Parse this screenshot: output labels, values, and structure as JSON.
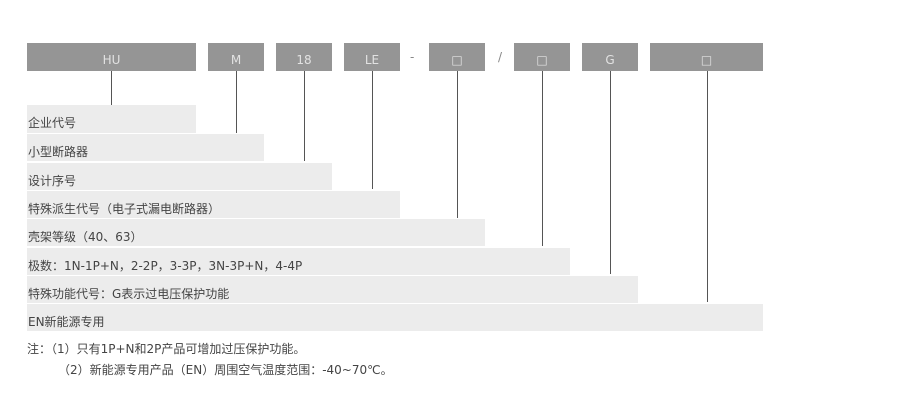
{
  "header": {
    "codes": [
      "HU",
      "M",
      "18",
      "LE",
      "□",
      "□",
      "G",
      "□"
    ],
    "dash": "-",
    "slash": "/"
  },
  "rows": [
    "企业代号",
    "小型断路器",
    "设计序号",
    "特殊派生代号（电子式漏电断路器）",
    "壳架等级（40、63）",
    "极数：1N-1P+N，2-2P，3-3P，3N-3P+N，4-4P",
    "特殊功能代号：G表示过电压保护功能",
    "EN新能源专用"
  ],
  "notes": [
    "注：（1）只有1P+N和2P产品可增加过压保护功能。",
    "（2）新能源专用产品（EN）周围空气温度范围：-40~70℃。"
  ],
  "colors": {
    "code_box": "#959595",
    "row_bar": "#ececec"
  }
}
